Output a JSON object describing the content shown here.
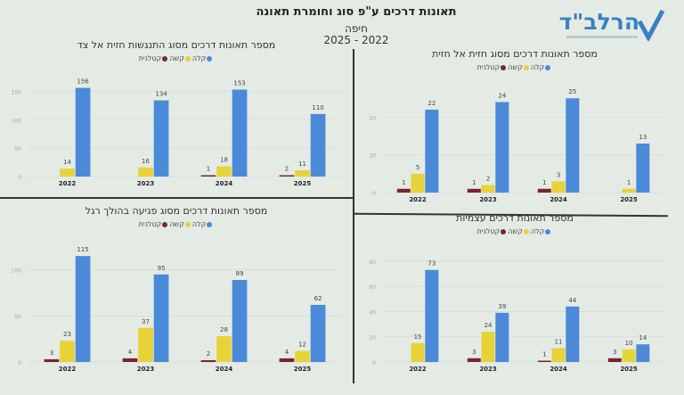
{
  "header": {
    "title": "תאונות דרכים ע\"פ סוג וחומרת תאונה",
    "city": "חיפה",
    "years": "2025 - 2022",
    "logo_text": "הרלב\"ד"
  },
  "colors": {
    "light": "#4a8ad8",
    "severe": "#e8d23a",
    "fatal": "#7a2430",
    "background": "#e4ebe5"
  },
  "legend": {
    "light": "קלה",
    "severe": "קשה",
    "fatal": "קטלנית"
  },
  "chart_data": [
    {
      "type": "bar",
      "title": "מספר תאונות דרכים מסוג התנגשות חזית אל צד",
      "categories": [
        "2022",
        "2023",
        "2024",
        "2025"
      ],
      "yticks": [
        0,
        50,
        100,
        150
      ],
      "ylim": [
        0,
        160
      ],
      "series": [
        {
          "name": "קטלנית",
          "key": "fatal",
          "values": [
            null,
            null,
            1,
            2
          ]
        },
        {
          "name": "קשה",
          "key": "severe",
          "values": [
            14,
            16,
            18,
            11
          ]
        },
        {
          "name": "קלה",
          "key": "light",
          "values": [
            156,
            134,
            153,
            110
          ]
        }
      ]
    },
    {
      "type": "bar",
      "title": "מספר תאונות דרכים מסוג חזית אל חזית",
      "categories": [
        "2022",
        "2023",
        "2024",
        "2025"
      ],
      "yticks": [
        0,
        10,
        20
      ],
      "ylim": [
        0,
        26
      ],
      "series": [
        {
          "name": "קטלנית",
          "key": "fatal",
          "values": [
            1,
            1,
            1,
            null
          ]
        },
        {
          "name": "קשה",
          "key": "severe",
          "values": [
            5,
            2,
            3,
            1
          ]
        },
        {
          "name": "קלה",
          "key": "light",
          "values": [
            22,
            24,
            25,
            13
          ]
        }
      ]
    },
    {
      "type": "bar",
      "title": "מספר תאונות דרכים מסוג פגיעה בהולך רגל",
      "categories": [
        "2022",
        "2023",
        "2024",
        "2025"
      ],
      "yticks": [
        0,
        50,
        100
      ],
      "ylim": [
        0,
        120
      ],
      "series": [
        {
          "name": "קטלנית",
          "key": "fatal",
          "values": [
            3,
            4,
            2,
            4
          ]
        },
        {
          "name": "קשה",
          "key": "severe",
          "values": [
            23,
            37,
            28,
            12
          ]
        },
        {
          "name": "קלה",
          "key": "light",
          "values": [
            115,
            95,
            89,
            62
          ]
        }
      ]
    },
    {
      "type": "bar",
      "title": "מספר תאונות דרכים עצמיות",
      "categories": [
        "2022",
        "2023",
        "2024",
        "2025"
      ],
      "yticks": [
        0,
        20,
        40,
        60,
        80
      ],
      "ylim": [
        0,
        82
      ],
      "series": [
        {
          "name": "קטלנית",
          "key": "fatal",
          "values": [
            null,
            3,
            1,
            3
          ]
        },
        {
          "name": "קשה",
          "key": "severe",
          "values": [
            15,
            24,
            11,
            10
          ]
        },
        {
          "name": "קלה",
          "key": "light",
          "values": [
            73,
            39,
            44,
            14
          ]
        }
      ]
    }
  ]
}
